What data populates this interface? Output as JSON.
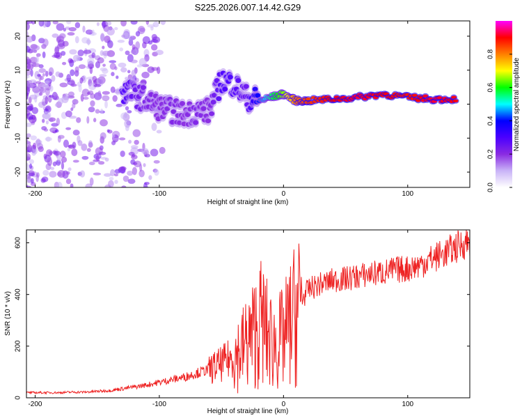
{
  "title": "S225.2026.007.14.42.G29",
  "chart_data": [
    {
      "type": "heatmap",
      "name": "spectrogram",
      "xlabel": "Height of straight line (km)",
      "ylabel": "Frequency (Hz)",
      "xlim": [
        -207,
        150
      ],
      "ylim": [
        -24.5,
        24.5
      ],
      "xticks": [
        -200,
        -100,
        0,
        100
      ],
      "xtick_labels": [
        "-200",
        "-100",
        "0",
        "100"
      ],
      "yticks": [
        -20,
        -10,
        0,
        10,
        20
      ],
      "ytick_labels": [
        "-20",
        "-10",
        "0",
        "10",
        "20"
      ],
      "colorbar": {
        "label": "Normalized spectral amplitude",
        "range": [
          0,
          1
        ],
        "ticks": [
          0.0,
          0.2,
          0.4,
          0.6,
          0.8
        ],
        "tick_labels": [
          "0.0",
          "0.2",
          "0.4",
          "0.6",
          "0.8"
        ],
        "colormap": [
          "#ffffff",
          "#c9b3f7",
          "#8a2be2",
          "#4b00ff",
          "#0000ff",
          "#00ffff",
          "#00ff00",
          "#ffff00",
          "#ff7f00",
          "#ff0000",
          "#ff00ff"
        ]
      },
      "ridge": [
        {
          "x": -130,
          "y": 4,
          "v": 0.3
        },
        {
          "x": -120,
          "y": 3,
          "v": 0.25
        },
        {
          "x": -110,
          "y": 1,
          "v": 0.22
        },
        {
          "x": -100,
          "y": -1,
          "v": 0.2
        },
        {
          "x": -90,
          "y": -2,
          "v": 0.22
        },
        {
          "x": -80,
          "y": -3,
          "v": 0.2
        },
        {
          "x": -70,
          "y": -2,
          "v": 0.22
        },
        {
          "x": -60,
          "y": -2,
          "v": 0.2
        },
        {
          "x": -50,
          "y": 7,
          "v": 0.3
        },
        {
          "x": -40,
          "y": 6,
          "v": 0.3
        },
        {
          "x": -30,
          "y": 2,
          "v": 0.25
        },
        {
          "x": -20,
          "y": 1,
          "v": 0.4
        },
        {
          "x": -10,
          "y": 2,
          "v": 0.55
        },
        {
          "x": 0,
          "y": 3,
          "v": 0.65
        },
        {
          "x": 10,
          "y": 1,
          "v": 0.8
        },
        {
          "x": 20,
          "y": 1,
          "v": 0.85
        },
        {
          "x": 40,
          "y": 1.5,
          "v": 0.9
        },
        {
          "x": 60,
          "y": 2,
          "v": 0.92
        },
        {
          "x": 80,
          "y": 3,
          "v": 0.9
        },
        {
          "x": 100,
          "y": 2,
          "v": 0.88
        },
        {
          "x": 120,
          "y": 1.5,
          "v": 0.92
        },
        {
          "x": 140,
          "y": 1.5,
          "v": 0.9
        }
      ]
    },
    {
      "type": "line",
      "name": "snr",
      "xlabel": "Height of straight line (km)",
      "ylabel": "SNR (10 * v/v)",
      "xlim": [
        -207,
        150
      ],
      "ylim": [
        0,
        650
      ],
      "xticks": [
        -200,
        -100,
        0,
        100
      ],
      "xtick_labels": [
        "-200",
        "-100",
        "0",
        "100"
      ],
      "yticks": [
        0,
        200,
        400,
        600
      ],
      "ytick_labels": [
        "0",
        "200",
        "400",
        "600"
      ],
      "color": "#ee2222",
      "series": [
        {
          "name": "SNR",
          "x": [
            -207,
            -200,
            -190,
            -180,
            -170,
            -160,
            -150,
            -140,
            -130,
            -120,
            -110,
            -100,
            -90,
            -80,
            -70,
            -60,
            -50,
            -40,
            -35,
            -30,
            -25,
            -20,
            -17,
            -15,
            -10,
            -5,
            0,
            5,
            10,
            15,
            20,
            25,
            30,
            40,
            50,
            60,
            70,
            80,
            90,
            100,
            110,
            120,
            130,
            140,
            150
          ],
          "y": [
            20,
            20,
            20,
            20,
            22,
            22,
            25,
            28,
            35,
            42,
            50,
            60,
            70,
            80,
            95,
            110,
            130,
            160,
            180,
            210,
            240,
            280,
            300,
            260,
            220,
            210,
            230,
            280,
            330,
            380,
            420,
            430,
            440,
            455,
            460,
            470,
            480,
            485,
            495,
            500,
            515,
            540,
            560,
            585,
            610
          ]
        }
      ]
    }
  ]
}
